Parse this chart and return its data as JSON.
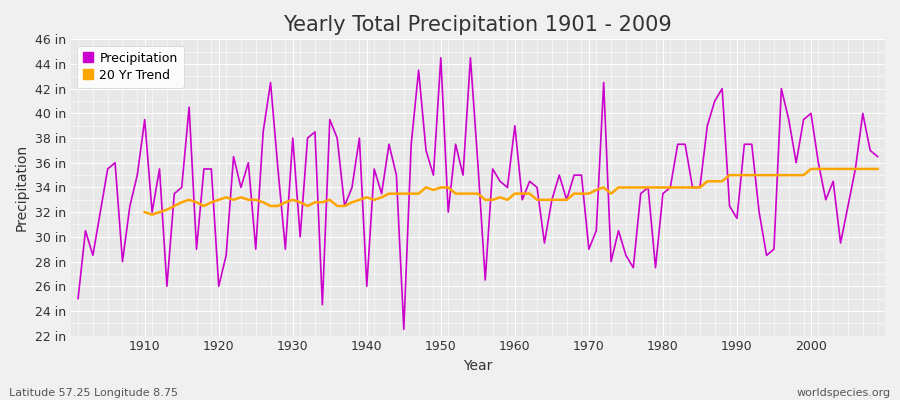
{
  "title": "Yearly Total Precipitation 1901 - 2009",
  "xlabel": "Year",
  "ylabel": "Precipitation",
  "lat_lon_label": "Latitude 57.25 Longitude 8.75",
  "watermark": "worldspecies.org",
  "years": [
    1901,
    1902,
    1903,
    1904,
    1905,
    1906,
    1907,
    1908,
    1909,
    1910,
    1911,
    1912,
    1913,
    1914,
    1915,
    1916,
    1917,
    1918,
    1919,
    1920,
    1921,
    1922,
    1923,
    1924,
    1925,
    1926,
    1927,
    1928,
    1929,
    1930,
    1931,
    1932,
    1933,
    1934,
    1935,
    1936,
    1937,
    1938,
    1939,
    1940,
    1941,
    1942,
    1943,
    1944,
    1945,
    1946,
    1947,
    1948,
    1949,
    1950,
    1951,
    1952,
    1953,
    1954,
    1955,
    1956,
    1957,
    1958,
    1959,
    1960,
    1961,
    1962,
    1963,
    1964,
    1965,
    1966,
    1967,
    1968,
    1969,
    1970,
    1971,
    1972,
    1973,
    1974,
    1975,
    1976,
    1977,
    1978,
    1979,
    1980,
    1981,
    1982,
    1983,
    1984,
    1985,
    1986,
    1987,
    1988,
    1989,
    1990,
    1991,
    1992,
    1993,
    1994,
    1995,
    1996,
    1997,
    1998,
    1999,
    2000,
    2001,
    2002,
    2003,
    2004,
    2005,
    2006,
    2007,
    2008,
    2009
  ],
  "precip": [
    25.0,
    30.5,
    28.5,
    32.0,
    35.5,
    36.0,
    28.0,
    32.5,
    35.0,
    39.5,
    32.0,
    35.5,
    26.0,
    33.5,
    34.0,
    40.5,
    29.0,
    35.5,
    35.5,
    26.0,
    28.5,
    36.5,
    34.0,
    36.0,
    29.0,
    38.5,
    42.5,
    35.5,
    29.0,
    38.0,
    30.0,
    38.0,
    38.5,
    24.5,
    39.5,
    38.0,
    32.5,
    34.0,
    38.0,
    26.0,
    35.5,
    33.5,
    37.5,
    35.0,
    22.5,
    37.5,
    43.5,
    37.0,
    35.0,
    44.5,
    32.0,
    37.5,
    35.0,
    44.5,
    36.0,
    26.5,
    35.5,
    34.5,
    34.0,
    39.0,
    33.0,
    34.5,
    34.0,
    29.5,
    33.0,
    35.0,
    33.0,
    35.0,
    35.0,
    29.0,
    30.5,
    42.5,
    28.0,
    30.5,
    28.5,
    27.5,
    33.5,
    34.0,
    27.5,
    33.5,
    34.0,
    37.5,
    37.5,
    34.0,
    34.0,
    39.0,
    41.0,
    42.0,
    32.5,
    31.5,
    37.5,
    37.5,
    32.0,
    28.5,
    29.0,
    42.0,
    39.5,
    36.0,
    39.5,
    40.0,
    36.0,
    33.0,
    34.5,
    29.5,
    32.5,
    35.5,
    40.0,
    37.0,
    36.5
  ],
  "trend": [
    null,
    null,
    null,
    null,
    null,
    null,
    null,
    null,
    null,
    32.0,
    31.8,
    32.0,
    32.2,
    32.5,
    32.8,
    33.0,
    32.8,
    32.5,
    32.8,
    33.0,
    33.2,
    33.0,
    33.2,
    33.0,
    33.0,
    32.8,
    32.5,
    32.5,
    32.8,
    33.0,
    32.8,
    32.5,
    32.8,
    32.8,
    33.0,
    32.5,
    32.5,
    32.8,
    33.0,
    33.2,
    33.0,
    33.2,
    33.5,
    33.5,
    33.5,
    33.5,
    33.5,
    34.0,
    33.8,
    34.0,
    34.0,
    33.5,
    33.5,
    33.5,
    33.5,
    33.0,
    33.0,
    33.2,
    33.0,
    33.5,
    33.5,
    33.5,
    33.0,
    33.0,
    33.0,
    33.0,
    33.0,
    33.5,
    33.5,
    33.5,
    33.8,
    34.0,
    33.5,
    34.0,
    34.0,
    34.0,
    34.0,
    34.0,
    34.0,
    34.0,
    34.0,
    34.0,
    34.0,
    34.0,
    34.0,
    34.5,
    34.5,
    34.5,
    35.0,
    35.0,
    35.0,
    35.0,
    35.0,
    35.0,
    35.0,
    35.0,
    35.0,
    35.0,
    35.0,
    35.5,
    35.5,
    35.5,
    35.5,
    35.5,
    35.5,
    35.5,
    35.5,
    35.5,
    35.5
  ],
  "precip_color": "#cc00cc",
  "trend_color": "#ffa500",
  "fig_bg_color": "#f0f0f0",
  "plot_bg_color": "#e8e8e8",
  "grid_color": "#ffffff",
  "ylim": [
    22,
    46
  ],
  "yticks": [
    22,
    24,
    26,
    28,
    30,
    32,
    34,
    36,
    38,
    40,
    42,
    44,
    46
  ],
  "ytick_labels": [
    "22 in",
    "24 in",
    "26 in",
    "28 in",
    "30 in",
    "32 in",
    "34 in",
    "36 in",
    "38 in",
    "40 in",
    "42 in",
    "44 in",
    "46 in"
  ],
  "xticks": [
    1910,
    1920,
    1930,
    1940,
    1950,
    1960,
    1970,
    1980,
    1990,
    2000
  ],
  "xlim": [
    1900,
    2010
  ],
  "title_fontsize": 15,
  "axis_label_fontsize": 10,
  "tick_fontsize": 9,
  "legend_fontsize": 9,
  "annotation_fontsize": 8
}
